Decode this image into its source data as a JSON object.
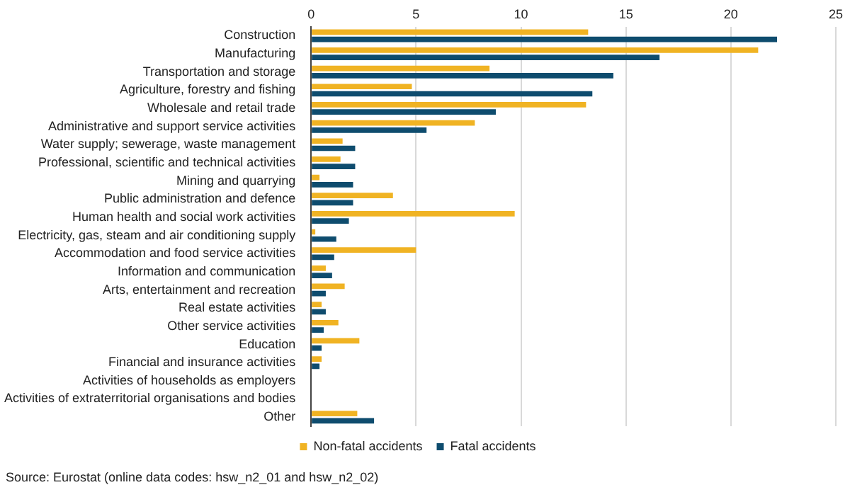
{
  "chart_data": {
    "type": "bar",
    "orientation": "horizontal",
    "categories": [
      "Construction",
      "Manufacturing",
      "Transportation and storage",
      "Agriculture, forestry and fishing",
      "Wholesale and retail trade",
      "Administrative and support service activities",
      "Water supply; sewerage, waste management",
      "Professional, scientific and technical activities",
      "Mining and quarrying",
      "Public administration and defence",
      "Human health and social work activities",
      "Electricity, gas, steam and air conditioning supply",
      "Accommodation and food service activities",
      "Information and communication",
      "Arts, entertainment and recreation",
      "Real estate activities",
      "Other service activities",
      "Education",
      "Financial and insurance activities",
      "Activities of households as employers",
      "Activities of extraterritorial organisations and bodies",
      "Other"
    ],
    "series": [
      {
        "name": "Non-fatal accidents",
        "color": "#f0b323",
        "values": [
          13.2,
          21.3,
          8.5,
          4.8,
          13.1,
          7.8,
          1.5,
          1.4,
          0.4,
          3.9,
          9.7,
          0.2,
          5.0,
          0.7,
          1.6,
          0.5,
          1.3,
          2.3,
          0.5,
          null,
          null,
          2.2
        ]
      },
      {
        "name": "Fatal accidents",
        "color": "#0e4c6e",
        "values": [
          22.2,
          16.6,
          14.4,
          13.4,
          8.8,
          5.5,
          2.1,
          2.1,
          2.0,
          2.0,
          1.8,
          1.2,
          1.1,
          1.0,
          0.7,
          0.7,
          0.6,
          0.5,
          0.4,
          null,
          null,
          3.0
        ]
      }
    ],
    "xlim": [
      0,
      25
    ],
    "xticks": [
      0,
      5,
      10,
      15,
      20,
      25
    ],
    "grid": "x",
    "legend": "bottom",
    "annotations": [
      "Source: Eurostat (online data codes: hsw_n2_01 and hsw_n2_02)"
    ]
  }
}
